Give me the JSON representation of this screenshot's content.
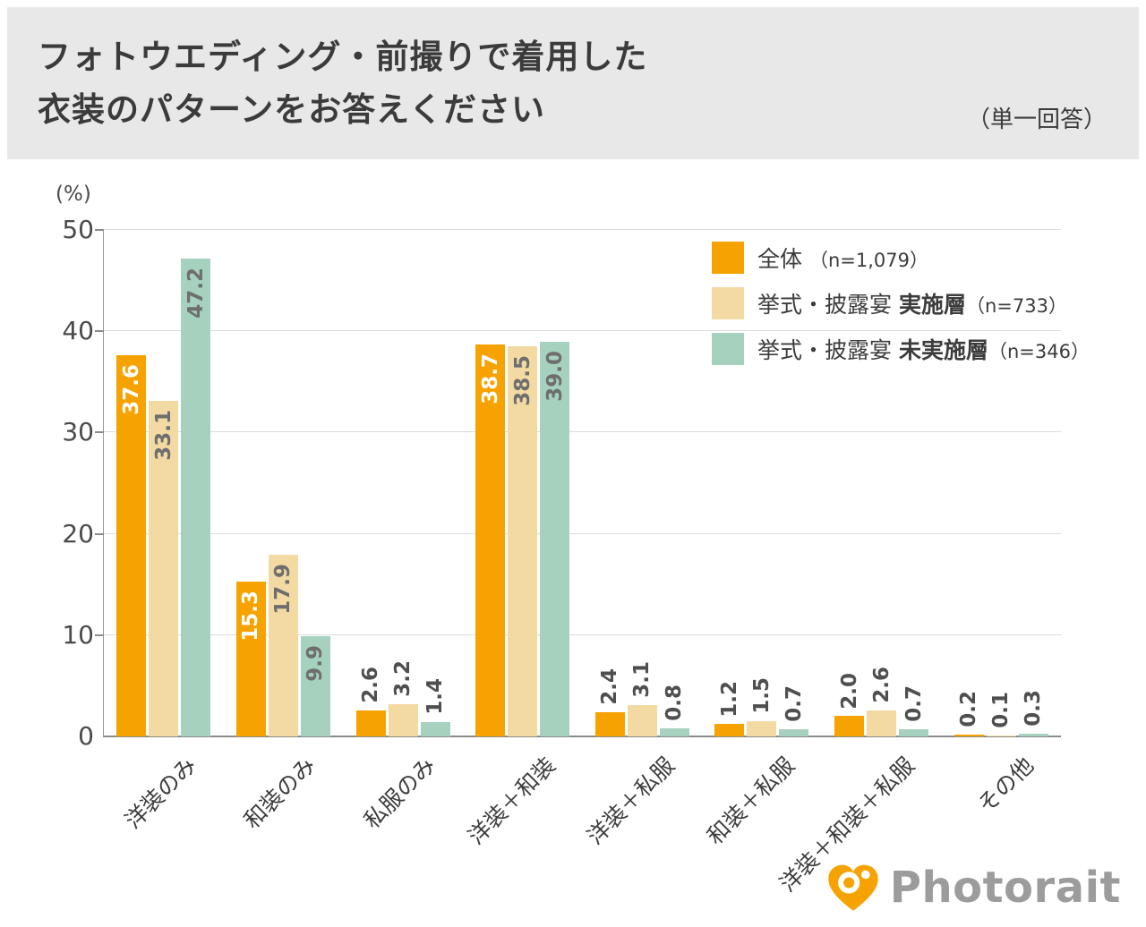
{
  "header": {
    "title_line1": "フォトウエディング・前撮りで着用した",
    "title_line2": "衣装のパターンをお答えください",
    "answer_type": "（単一回答）"
  },
  "chart_data": {
    "type": "bar",
    "title": "フォトウエディング・前撮りで着用した衣装のパターンをお答えください",
    "note": "（単一回答）",
    "unit_label": "(%)",
    "xlabel": "",
    "ylabel": "%",
    "ylim": [
      0,
      50
    ],
    "yticks": [
      0,
      10,
      20,
      30,
      40,
      50
    ],
    "grid": true,
    "legend_position": "top-right",
    "categories": [
      "洋装のみ",
      "和装のみ",
      "私服のみ",
      "洋装＋和装",
      "洋装＋私服",
      "和装＋私服",
      "洋装＋和装＋私服",
      "その他"
    ],
    "series": [
      {
        "name_prefix": "全体 ",
        "name_bold": "",
        "name_suffix": "（n=1,079）",
        "color": "#F6A200",
        "inside_label_color": "#FFFFFF",
        "values": [
          37.6,
          15.3,
          2.6,
          38.7,
          2.4,
          1.2,
          2.0,
          0.2
        ]
      },
      {
        "name_prefix": "挙式・披露宴 ",
        "name_bold": "実施層",
        "name_suffix": "（n=733）",
        "color": "#F3DAA3",
        "inside_label_color": "#6E6E6E",
        "values": [
          33.1,
          17.9,
          3.2,
          38.5,
          3.1,
          1.5,
          2.6,
          0.1
        ]
      },
      {
        "name_prefix": "挙式・披露宴 ",
        "name_bold": "未実施層",
        "name_suffix": "（n=346）",
        "color": "#A6D1BF",
        "inside_label_color": "#6E6E6E",
        "values": [
          47.2,
          9.9,
          1.4,
          39.0,
          0.8,
          0.7,
          0.7,
          0.3
        ]
      }
    ]
  },
  "footer": {
    "brand": "Photorait"
  },
  "colors": {
    "header_bg": "#E8E8E8",
    "accent_orange": "#F6A200",
    "tan": "#F3DAA3",
    "green": "#A6D1BF",
    "text_dark": "#3B3B3B",
    "brand_gray": "#9C9C9C"
  }
}
